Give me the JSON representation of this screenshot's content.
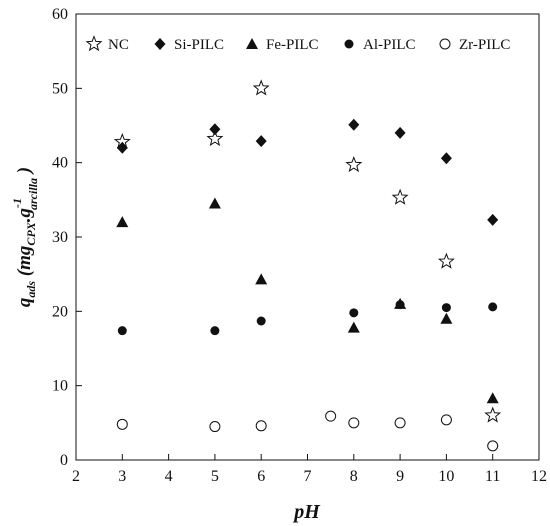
{
  "chart_data": {
    "type": "scatter",
    "xlabel": "pH",
    "ylabel": {
      "main": "q",
      "main_sub": "ads",
      "unit_open": " (mg",
      "unit_sub1": "CPX",
      "unit_mid": ".g",
      "unit_sup": "-1",
      "unit_sub2": "arcilla",
      "unit_close": " )"
    },
    "xlim": [
      2,
      12
    ],
    "ylim": [
      0,
      60
    ],
    "xticks": [
      "2",
      "3",
      "4",
      "5",
      "6",
      "7",
      "8",
      "9",
      "10",
      "11",
      "12"
    ],
    "yticks": [
      "0",
      "10",
      "20",
      "30",
      "40",
      "50",
      "60"
    ],
    "grid": false,
    "legend_position": "top",
    "series": [
      {
        "name": "NC",
        "marker": "star-open",
        "points": [
          [
            3,
            42.8
          ],
          [
            5,
            43.2
          ],
          [
            6,
            50.0
          ],
          [
            8,
            39.7
          ],
          [
            9,
            35.3
          ],
          [
            10,
            26.7
          ],
          [
            11,
            6.0
          ]
        ]
      },
      {
        "name": "Si-PILC",
        "marker": "diamond-filled",
        "points": [
          [
            3,
            42.0
          ],
          [
            5,
            44.5
          ],
          [
            6,
            42.9
          ],
          [
            8,
            45.1
          ],
          [
            9,
            44.0
          ],
          [
            10,
            40.6
          ],
          [
            11,
            32.3
          ]
        ]
      },
      {
        "name": "Fe-PILC",
        "marker": "triangle-filled",
        "points": [
          [
            3,
            32.0
          ],
          [
            5,
            34.5
          ],
          [
            6,
            24.3
          ],
          [
            8,
            17.8
          ],
          [
            9,
            21.0
          ],
          [
            10,
            19.0
          ],
          [
            11,
            8.3
          ]
        ]
      },
      {
        "name": "Al-PILC",
        "marker": "circle-filled",
        "points": [
          [
            3,
            17.4
          ],
          [
            5,
            17.4
          ],
          [
            6,
            18.7
          ],
          [
            8,
            19.8
          ],
          [
            9,
            20.9
          ],
          [
            10,
            20.5
          ],
          [
            11,
            20.6
          ]
        ]
      },
      {
        "name": "Zr-PILC",
        "marker": "circle-open",
        "points": [
          [
            3,
            4.8
          ],
          [
            5,
            4.5
          ],
          [
            6,
            4.6
          ],
          [
            7.5,
            5.9
          ],
          [
            8,
            5.0
          ],
          [
            9,
            5.0
          ],
          [
            10,
            5.4
          ],
          [
            11,
            1.9
          ]
        ]
      }
    ]
  }
}
